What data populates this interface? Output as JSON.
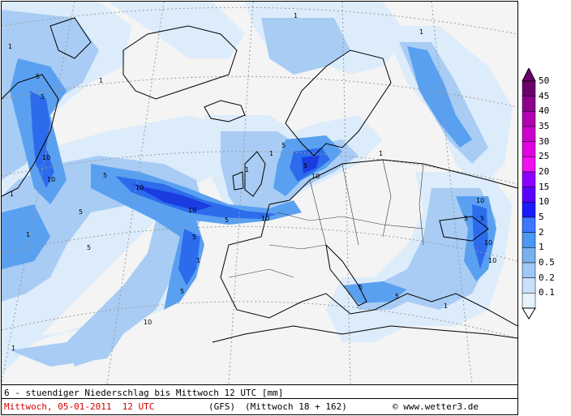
{
  "map": {
    "footer": {
      "title": "6 - stuendiger Niederschlag bis Mittwoch 12 UTC [mm]",
      "date": "Mittwoch, 05-01-2011  12 UTC",
      "model": "(GFS)",
      "run": "(Mittwoch 18 + 162)",
      "copyright": "www.wetter3.de"
    },
    "legend": {
      "levels": [
        "50",
        "45",
        "40",
        "35",
        "30",
        "25",
        "20",
        "15",
        "10",
        "5",
        "2",
        "1",
        "0.5",
        "0.2",
        "0.1"
      ],
      "colors": [
        "#6a006a",
        "#8c008c",
        "#b000b0",
        "#cc00cc",
        "#e000e0",
        "#f010f0",
        "#8c00ff",
        "#5a00ff",
        "#1a1aff",
        "#3c78ff",
        "#4c96f4",
        "#78b0f0",
        "#a0c8f4",
        "#c8e0fa",
        "#e6f2fc"
      ]
    },
    "colors": {
      "land": "#f4f4f4",
      "coast": "#000000",
      "grid": "#9a9a9a",
      "light": "#dcecfa",
      "mid": "#a8ccf4",
      "blue": "#5aa0f0",
      "dark": "#2c6cec",
      "deep": "#1a3ce0"
    },
    "labels": [
      "1",
      "2",
      "5",
      "10"
    ]
  }
}
